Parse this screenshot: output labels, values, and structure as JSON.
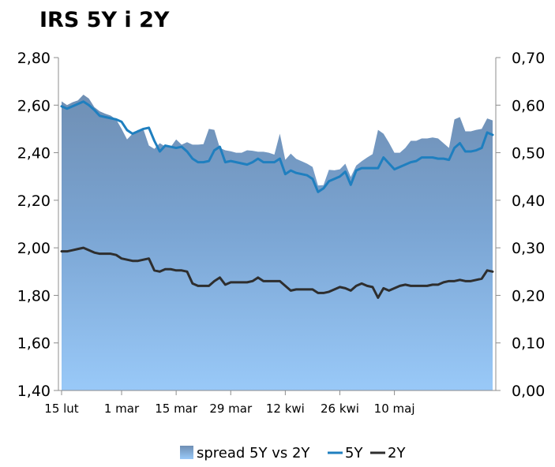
{
  "title": "IRS 5Y i 2Y",
  "chart_data": {
    "type": "area",
    "title": "IRS 5Y i 2Y",
    "left_axis": {
      "ylim": [
        1.4,
        2.8
      ],
      "ticks": [
        "1,40",
        "1,60",
        "1,80",
        "2,00",
        "2,20",
        "2,40",
        "2,60",
        "2,80"
      ]
    },
    "right_axis": {
      "ylim": [
        0.0,
        0.7
      ],
      "ticks": [
        "0,00",
        "0,10",
        "0,20",
        "0,30",
        "0,40",
        "0,50",
        "0,60",
        "0,70"
      ]
    },
    "x_ticks": [
      {
        "label": "15 lut",
        "index": 0
      },
      {
        "label": "1 mar",
        "index": 11
      },
      {
        "label": "15 mar",
        "index": 21
      },
      {
        "label": "29 mar",
        "index": 31
      },
      {
        "label": "12 kwi",
        "index": 41
      },
      {
        "label": "26 kwi",
        "index": 51
      },
      {
        "label": "10 maj",
        "index": 61
      }
    ],
    "legend_position": "bottom",
    "gridlines": false,
    "series": [
      {
        "name": "spread 5Y vs 2Y",
        "axis": "right",
        "type": "area",
        "values": [
          0.608,
          0.6,
          0.606,
          0.61,
          0.622,
          0.614,
          0.596,
          0.587,
          0.582,
          0.578,
          0.57,
          0.55,
          0.528,
          0.54,
          0.548,
          0.549,
          0.515,
          0.508,
          0.52,
          0.513,
          0.512,
          0.528,
          0.517,
          0.522,
          0.517,
          0.517,
          0.518,
          0.55,
          0.548,
          0.51,
          0.505,
          0.503,
          0.5,
          0.5,
          0.505,
          0.504,
          0.502,
          0.502,
          0.5,
          0.496,
          0.54,
          0.485,
          0.498,
          0.487,
          0.482,
          0.477,
          0.47,
          0.431,
          0.432,
          0.464,
          0.463,
          0.465,
          0.477,
          0.449,
          0.473,
          0.482,
          0.49,
          0.497,
          0.548,
          0.54,
          0.521,
          0.5,
          0.5,
          0.51,
          0.525,
          0.525,
          0.53,
          0.53,
          0.532,
          0.53,
          0.52,
          0.51,
          0.57,
          0.575,
          0.545,
          0.545,
          0.548,
          0.55,
          0.572,
          0.568
        ]
      },
      {
        "name": "5Y",
        "axis": "left",
        "type": "line",
        "color": "#1f7fbf",
        "values": [
          2.595,
          2.585,
          2.595,
          2.605,
          2.615,
          2.6,
          2.58,
          2.555,
          2.55,
          2.545,
          2.54,
          2.53,
          2.495,
          2.48,
          2.49,
          2.5,
          2.505,
          2.45,
          2.405,
          2.43,
          2.425,
          2.42,
          2.425,
          2.405,
          2.375,
          2.36,
          2.36,
          2.365,
          2.41,
          2.425,
          2.36,
          2.365,
          2.36,
          2.355,
          2.35,
          2.36,
          2.375,
          2.36,
          2.36,
          2.36,
          2.375,
          2.31,
          2.325,
          2.315,
          2.31,
          2.305,
          2.29,
          2.235,
          2.25,
          2.28,
          2.29,
          2.3,
          2.32,
          2.265,
          2.325,
          2.335,
          2.335,
          2.335,
          2.335,
          2.38,
          2.355,
          2.33,
          2.34,
          2.35,
          2.36,
          2.365,
          2.38,
          2.38,
          2.38,
          2.375,
          2.375,
          2.37,
          2.42,
          2.44,
          2.405,
          2.405,
          2.41,
          2.42,
          2.485,
          2.475
        ]
      },
      {
        "name": "2Y",
        "axis": "left",
        "type": "line",
        "color": "#2e2e2e",
        "values": [
          1.985,
          1.985,
          1.99,
          1.995,
          2.0,
          1.99,
          1.98,
          1.975,
          1.975,
          1.975,
          1.97,
          1.955,
          1.95,
          1.945,
          1.945,
          1.95,
          1.955,
          1.905,
          1.9,
          1.91,
          1.91,
          1.905,
          1.905,
          1.9,
          1.85,
          1.84,
          1.84,
          1.84,
          1.86,
          1.875,
          1.845,
          1.855,
          1.855,
          1.855,
          1.855,
          1.86,
          1.875,
          1.86,
          1.86,
          1.86,
          1.86,
          1.84,
          1.82,
          1.825,
          1.825,
          1.825,
          1.825,
          1.81,
          1.81,
          1.815,
          1.825,
          1.835,
          1.83,
          1.82,
          1.84,
          1.85,
          1.84,
          1.835,
          1.79,
          1.83,
          1.82,
          1.83,
          1.84,
          1.845,
          1.84,
          1.84,
          1.84,
          1.84,
          1.845,
          1.845,
          1.855,
          1.86,
          1.86,
          1.865,
          1.86,
          1.86,
          1.865,
          1.87,
          1.905,
          1.9
        ]
      }
    ]
  }
}
